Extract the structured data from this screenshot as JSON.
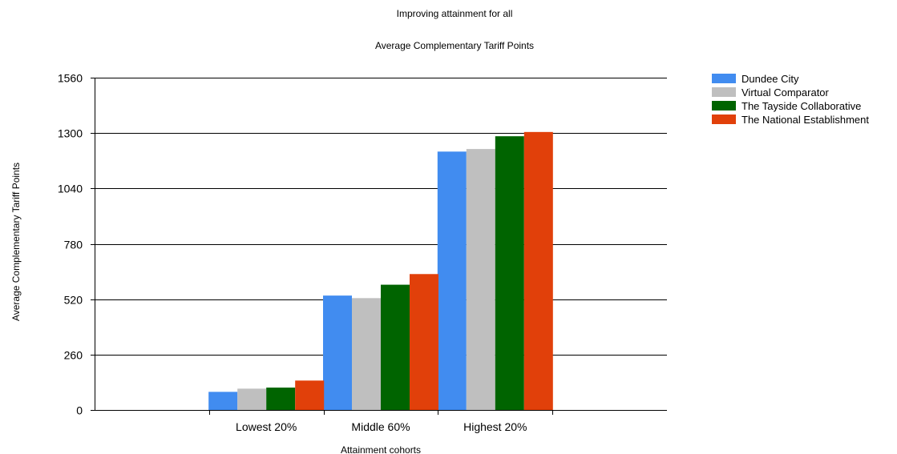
{
  "chart_data": {
    "type": "bar",
    "title": "Improving attainment for all",
    "subtitle": "Average Complementary Tariff Points",
    "xlabel": "Attainment cohorts",
    "ylabel": "Average Complementary Tariff Points",
    "categories": [
      "Lowest 20%",
      "Middle 60%",
      "Highest 20%"
    ],
    "ylim": [
      0,
      1560
    ],
    "yticks": [
      0,
      260,
      520,
      780,
      1040,
      1300,
      1560
    ],
    "grid": true,
    "legend_position": "top-right",
    "series": [
      {
        "name": "Dundee City",
        "color": "#418cf0",
        "values": [
          85,
          537,
          1213
        ]
      },
      {
        "name": "Virtual Comparator",
        "color": "#bfbfbf",
        "values": [
          100,
          525,
          1225
        ]
      },
      {
        "name": "The Tayside Collaborative",
        "color": "#006400",
        "values": [
          105,
          588,
          1285
        ]
      },
      {
        "name": "The National Establishment",
        "color": "#e1400a",
        "values": [
          138,
          638,
          1305
        ]
      }
    ]
  }
}
